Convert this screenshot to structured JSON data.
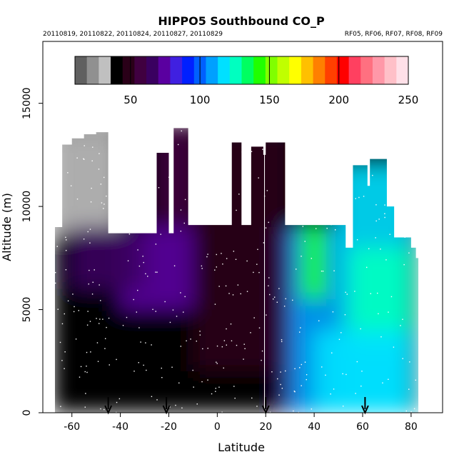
{
  "chart_data": {
    "type": "heatmap",
    "title": "HIPPO5 Southbound CO_P",
    "subtitle_left": "20110819, 20110822, 20110824, 20110827, 20110829",
    "subtitle_right": "RF05, RF06, RF07, RF08, RF09",
    "xlabel": "Latitude",
    "ylabel": "Altitude (m)",
    "xlim": [
      -72,
      93
    ],
    "ylim": [
      0,
      18000
    ],
    "x_ticks": [
      -60,
      -40,
      -20,
      0,
      20,
      40,
      60,
      80
    ],
    "y_ticks": [
      0,
      5000,
      10000,
      15000
    ],
    "x_tick_labels": [
      "-60",
      "-40",
      "-20",
      "0",
      "20",
      "40",
      "60",
      "80"
    ],
    "y_tick_labels": [
      "0",
      "5000",
      "10000",
      "15000"
    ],
    "colorbar": {
      "range": [
        10,
        250
      ],
      "ticks": [
        50,
        100,
        150,
        200,
        250
      ],
      "tick_labels": [
        "50",
        "100",
        "150",
        "200",
        "250"
      ],
      "divisions": [
        50,
        100,
        150,
        200
      ],
      "colors": [
        "#606060",
        "#909090",
        "#c0c0c0",
        "#000000",
        "#2a0018",
        "#400040",
        "#3a0060",
        "#5a00a0",
        "#4020e0",
        "#0020ff",
        "#0060ff",
        "#00a0ff",
        "#00e0ff",
        "#00ffc0",
        "#00ff60",
        "#20ff00",
        "#80ff00",
        "#c0ff00",
        "#ffff00",
        "#ffc000",
        "#ff8000",
        "#ff4000",
        "#ff0000",
        "#ff4060",
        "#ff7080",
        "#ff98a8",
        "#ffc0c8",
        "#ffe0e8"
      ]
    },
    "coverage_columns": [
      [
        -67,
        9000
      ],
      [
        -64,
        13000
      ],
      [
        -60,
        13300
      ],
      [
        -55,
        13500
      ],
      [
        -50,
        13600
      ],
      [
        -47,
        13600
      ],
      [
        -45,
        8700
      ],
      [
        -40,
        8700
      ],
      [
        -35,
        8700
      ],
      [
        -30,
        8700
      ],
      [
        -27,
        8700
      ],
      [
        -25,
        12600
      ],
      [
        -22,
        12600
      ],
      [
        -20,
        8700
      ],
      [
        -18,
        13800
      ],
      [
        -14,
        13800
      ],
      [
        -12,
        9100
      ],
      [
        -5,
        9100
      ],
      [
        0,
        9100
      ],
      [
        5,
        9100
      ],
      [
        6,
        13100
      ],
      [
        9,
        13100
      ],
      [
        10,
        9100
      ],
      [
        13,
        9100
      ],
      [
        14,
        12900
      ],
      [
        18,
        12900
      ],
      [
        19,
        12500
      ],
      [
        20,
        13100
      ],
      [
        26,
        13100
      ],
      [
        28,
        9100
      ],
      [
        30,
        9100
      ],
      [
        35,
        9100
      ],
      [
        40,
        9100
      ],
      [
        45,
        9100
      ],
      [
        50,
        9100
      ],
      [
        53,
        8000
      ],
      [
        56,
        12000
      ],
      [
        60,
        12000
      ],
      [
        62,
        11000
      ],
      [
        63,
        12300
      ],
      [
        67,
        12300
      ],
      [
        70,
        10000
      ],
      [
        73,
        8500
      ],
      [
        75,
        8500
      ],
      [
        80,
        8000
      ],
      [
        82,
        7500
      ]
    ],
    "value_regions": [
      {
        "x": [
          -67,
          -40
        ],
        "y": [
          8500,
          13700
        ],
        "value": 30
      },
      {
        "x": [
          -67,
          14
        ],
        "y": [
          0,
          8700
        ],
        "value": 40
      },
      {
        "x": [
          -40,
          -10
        ],
        "y": [
          5000,
          9000
        ],
        "value": 75
      },
      {
        "x": [
          -60,
          -30
        ],
        "y": [
          6000,
          9000
        ],
        "value": 65
      },
      {
        "x": [
          -10,
          30
        ],
        "y": [
          2000,
          13500
        ],
        "value": 45
      },
      {
        "x": [
          -25,
          -10
        ],
        "y": [
          9000,
          13800
        ],
        "value": 60
      },
      {
        "x": [
          25,
          35
        ],
        "y": [
          0,
          9000
        ],
        "value": 65
      },
      {
        "x": [
          30,
          50
        ],
        "y": [
          0,
          9000
        ],
        "value": 110
      },
      {
        "x": [
          35,
          45
        ],
        "y": [
          5500,
          9000
        ],
        "value": 140
      },
      {
        "x": [
          50,
          80
        ],
        "y": [
          0,
          12000
        ],
        "value": 115
      },
      {
        "x": [
          55,
          80
        ],
        "y": [
          3000,
          8000
        ],
        "value": 125
      },
      {
        "x": [
          40,
          80
        ],
        "y": [
          0,
          4000
        ],
        "value": 120
      }
    ],
    "arrows_x": [
      -45,
      -21,
      20,
      61
    ],
    "grid": false
  }
}
